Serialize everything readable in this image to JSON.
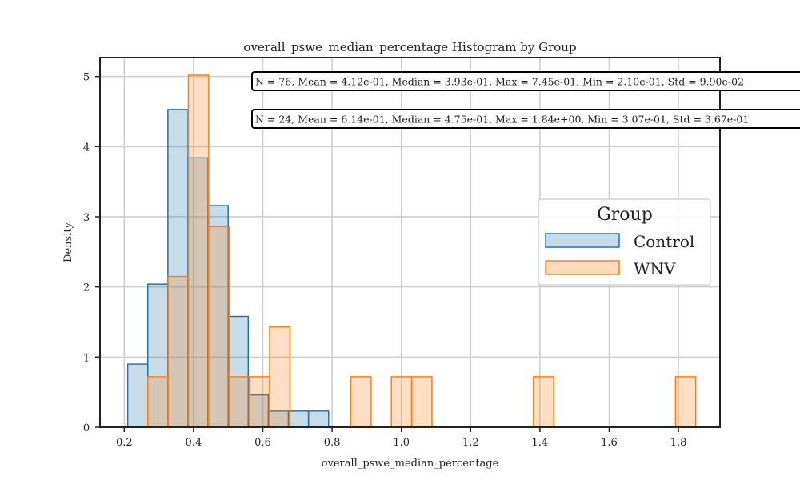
{
  "chart_data": {
    "type": "histogram",
    "title": "overall_pswe_median_percentage Histogram by Group",
    "xlabel": "overall_pswe_median_percentage",
    "ylabel": "Density",
    "xlim": [
      0.13,
      1.92
    ],
    "ylim": [
      0,
      5.27
    ],
    "xticks": [
      0.2,
      0.4,
      0.6,
      0.8,
      1.0,
      1.2,
      1.4,
      1.6,
      1.8
    ],
    "xtick_labels": [
      "0.2",
      "0.4",
      "0.6",
      "0.8",
      "1.0",
      "1.2",
      "1.4",
      "1.6",
      "1.8"
    ],
    "yticks": [
      0,
      1,
      2,
      3,
      4,
      5
    ],
    "ytick_labels": [
      "0",
      "1",
      "2",
      "3",
      "4",
      "5"
    ],
    "grid": true,
    "legend": {
      "title": "Group",
      "placement": "center-right",
      "entries": [
        "Control",
        "WNV"
      ]
    },
    "series": [
      {
        "name": "Control",
        "color": "#1f77b4",
        "fill": "#c6dbed",
        "bin_edges": [
          0.21,
          0.268,
          0.326,
          0.384,
          0.442,
          0.5,
          0.558,
          0.616,
          0.674,
          0.732,
          0.79
        ],
        "density": [
          0.9,
          2.04,
          4.53,
          3.84,
          3.16,
          1.58,
          0.46,
          0.23,
          0.23,
          0.23
        ],
        "stats": "N = 76, Mean = 4.12e-01, Median = 3.93e-01, Max = 7.45e-01, Min = 2.10e-01, Std = 9.90e-02"
      },
      {
        "name": "WNV",
        "color": "#ff7f0e",
        "fill": "#ffdbbd",
        "bin_edges": [
          0.268,
          0.3266,
          0.3852,
          0.4438,
          0.5024,
          0.561,
          0.6196,
          0.6782,
          0.7368,
          0.7954,
          0.854,
          0.9126,
          0.9712,
          1.0298,
          1.0884,
          1.147,
          1.2056,
          1.2642,
          1.3228,
          1.3814,
          1.44,
          1.4986,
          1.5572,
          1.6158,
          1.6744,
          1.733,
          1.7916,
          1.85
        ],
        "density": [
          0.72,
          2.15,
          5.02,
          2.86,
          0.72,
          0.72,
          1.43,
          0,
          0,
          0,
          0.72,
          0,
          0.72,
          0.72,
          0,
          0,
          0,
          0,
          0,
          0.72,
          0,
          0,
          0,
          0,
          0,
          0,
          0.72
        ],
        "stats": "N = 24, Mean = 6.14e-01, Median = 4.75e-01, Max = 1.84e+00, Min = 3.07e-01, Std = 3.67e-01"
      }
    ]
  }
}
